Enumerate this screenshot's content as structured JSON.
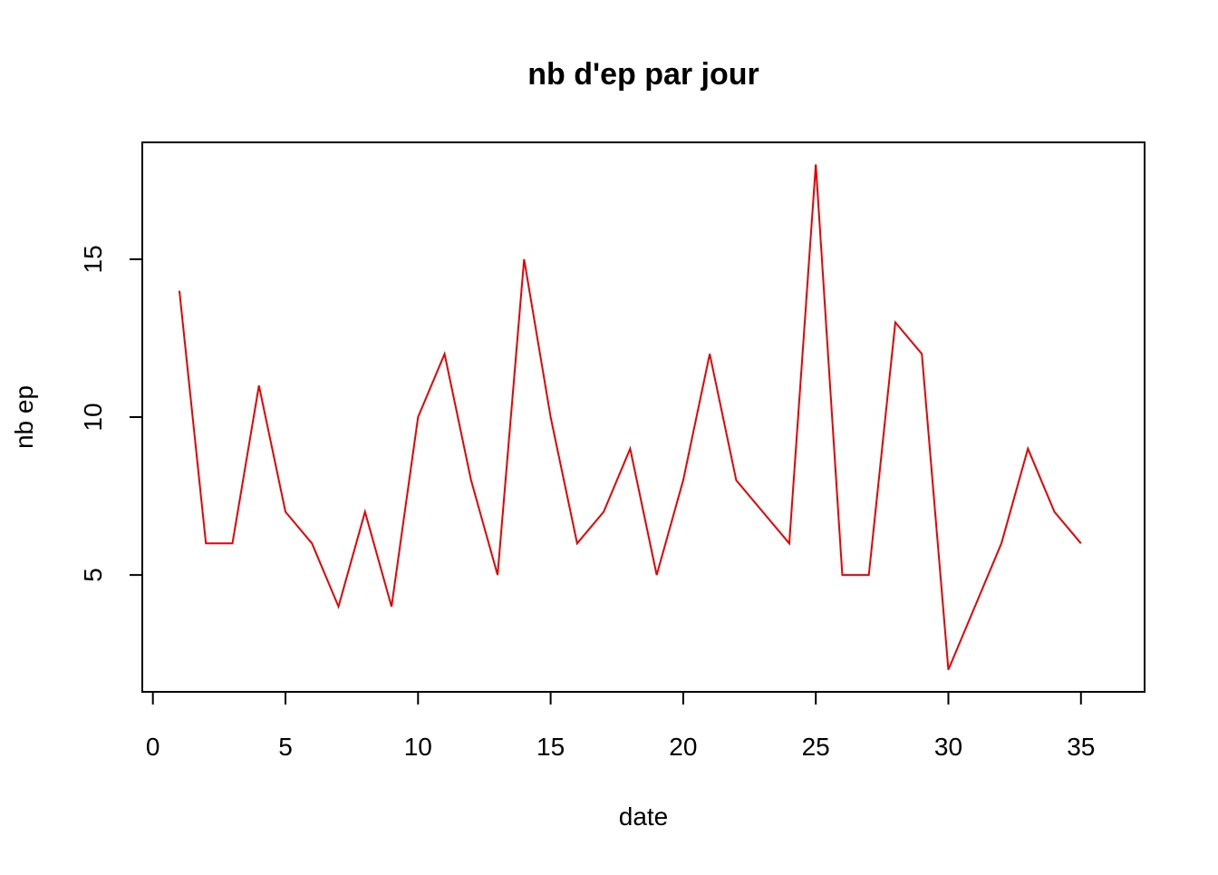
{
  "chart_data": {
    "type": "line",
    "title": "nb d'ep par jour",
    "xlabel": "date",
    "ylabel": "nb ep",
    "xlim": [
      -0.4,
      37.4
    ],
    "ylim": [
      1.3,
      18.7
    ],
    "x_ticks": [
      0,
      5,
      10,
      15,
      20,
      25,
      30,
      35
    ],
    "y_ticks": [
      5,
      10,
      15
    ],
    "x_tick_labels": [
      "0",
      "5",
      "10",
      "15",
      "20",
      "25",
      "30",
      "35"
    ],
    "y_tick_labels": [
      "5",
      "10",
      "15"
    ],
    "grid": false,
    "legend": "none",
    "series": [
      {
        "color": "#ee0000",
        "x": [
          1,
          2,
          3,
          4,
          5,
          6,
          7,
          8,
          9,
          10,
          11,
          12,
          13,
          14,
          15,
          16,
          17,
          18,
          19,
          20,
          21,
          22,
          23,
          24,
          25,
          26,
          27,
          28,
          29,
          30,
          31,
          32,
          33,
          34,
          35
        ],
        "y": [
          14,
          6,
          6,
          11,
          7,
          6,
          4,
          7,
          4,
          10,
          12,
          8,
          5,
          15,
          10,
          6,
          7,
          9,
          5,
          8,
          12,
          8,
          7,
          6,
          18,
          5,
          5,
          13,
          12,
          2,
          4,
          6,
          9,
          7,
          6
        ]
      }
    ]
  }
}
